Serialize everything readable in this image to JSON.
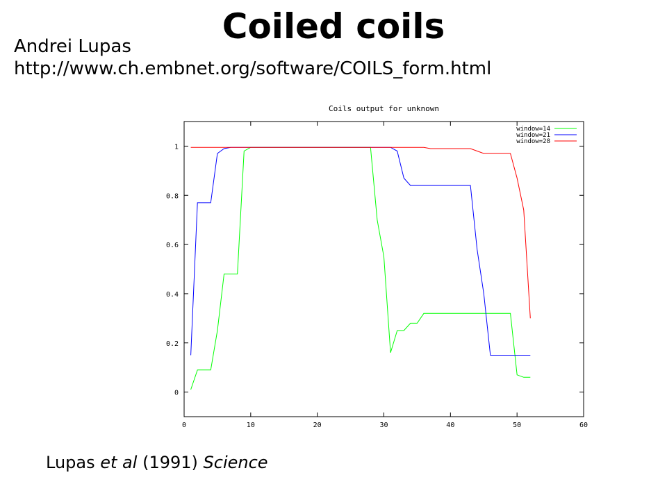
{
  "slide": {
    "title": "Coiled coils",
    "author": "Andrei Lupas",
    "url": "http://www.ch.embnet.org/software/COILS_form.html",
    "citation": {
      "author": "Lupas",
      "etal": "et al",
      "year": "(1991)",
      "journal": "Science"
    }
  },
  "chart_data": {
    "type": "line",
    "title": "Coils output for unknown",
    "xlabel": "",
    "ylabel": "",
    "xlim": [
      0,
      60
    ],
    "ylim": [
      -0.1,
      1.1
    ],
    "xticks": [
      0,
      10,
      20,
      30,
      40,
      50,
      60
    ],
    "yticks": [
      0,
      0.2,
      0.4,
      0.6,
      0.8,
      1
    ],
    "ytick_labels": [
      "0",
      "0.2",
      "0.4",
      "0.6",
      "0.8",
      "1"
    ],
    "grid": false,
    "legend": "top-right",
    "series": [
      {
        "name": "window=14",
        "color": "#00ff00",
        "x": [
          1,
          2,
          3,
          4,
          5,
          6,
          7,
          8,
          9,
          10,
          11,
          12,
          13,
          14,
          15,
          16,
          17,
          18,
          19,
          20,
          21,
          22,
          23,
          24,
          25,
          26,
          27,
          28,
          29,
          30,
          31,
          32,
          33,
          34,
          35,
          36,
          37,
          38,
          39,
          40,
          41,
          42,
          43,
          44,
          45,
          46,
          47,
          48,
          49,
          50,
          51,
          52
        ],
        "y": [
          0.01,
          0.09,
          0.09,
          0.09,
          0.25,
          0.48,
          0.48,
          0.48,
          0.98,
          0.995,
          0.995,
          0.995,
          0.995,
          0.995,
          0.995,
          0.995,
          0.995,
          0.995,
          0.995,
          0.995,
          0.995,
          0.995,
          0.995,
          0.995,
          0.995,
          0.995,
          0.995,
          0.995,
          0.7,
          0.55,
          0.16,
          0.25,
          0.25,
          0.28,
          0.28,
          0.32,
          0.32,
          0.32,
          0.32,
          0.32,
          0.32,
          0.32,
          0.32,
          0.32,
          0.32,
          0.32,
          0.32,
          0.32,
          0.32,
          0.07,
          0.06,
          0.06
        ]
      },
      {
        "name": "window=21",
        "color": "#0000ff",
        "x": [
          1,
          2,
          3,
          4,
          5,
          6,
          7,
          8,
          9,
          10,
          11,
          12,
          13,
          14,
          15,
          16,
          17,
          18,
          19,
          20,
          21,
          22,
          23,
          24,
          25,
          26,
          27,
          28,
          29,
          30,
          31,
          32,
          33,
          34,
          35,
          36,
          37,
          38,
          39,
          40,
          41,
          42,
          43,
          44,
          45,
          46,
          47,
          48,
          49,
          50,
          51,
          52
        ],
        "y": [
          0.15,
          0.77,
          0.77,
          0.77,
          0.97,
          0.99,
          0.995,
          0.995,
          0.995,
          0.995,
          0.995,
          0.995,
          0.995,
          0.995,
          0.995,
          0.995,
          0.995,
          0.995,
          0.995,
          0.995,
          0.995,
          0.995,
          0.995,
          0.995,
          0.995,
          0.995,
          0.995,
          0.995,
          0.995,
          0.995,
          0.995,
          0.98,
          0.87,
          0.84,
          0.84,
          0.84,
          0.84,
          0.84,
          0.84,
          0.84,
          0.84,
          0.84,
          0.84,
          0.58,
          0.4,
          0.15,
          0.15,
          0.15,
          0.15,
          0.15,
          0.15,
          0.15
        ]
      },
      {
        "name": "window=28",
        "color": "#ff0000",
        "x": [
          1,
          2,
          3,
          4,
          5,
          6,
          7,
          8,
          9,
          10,
          11,
          12,
          13,
          14,
          15,
          16,
          17,
          18,
          19,
          20,
          21,
          22,
          23,
          24,
          25,
          26,
          27,
          28,
          29,
          30,
          31,
          32,
          33,
          34,
          35,
          36,
          37,
          38,
          39,
          40,
          41,
          42,
          43,
          44,
          45,
          46,
          47,
          48,
          49,
          50,
          51,
          52
        ],
        "y": [
          0.995,
          0.995,
          0.995,
          0.995,
          0.995,
          0.995,
          0.995,
          0.995,
          0.995,
          0.995,
          0.995,
          0.995,
          0.995,
          0.995,
          0.995,
          0.995,
          0.995,
          0.995,
          0.995,
          0.995,
          0.995,
          0.995,
          0.995,
          0.995,
          0.995,
          0.995,
          0.995,
          0.995,
          0.995,
          0.995,
          0.995,
          0.995,
          0.995,
          0.995,
          0.995,
          0.995,
          0.99,
          0.99,
          0.99,
          0.99,
          0.99,
          0.99,
          0.99,
          0.98,
          0.97,
          0.97,
          0.97,
          0.97,
          0.97,
          0.87,
          0.74,
          0.3
        ]
      }
    ]
  }
}
